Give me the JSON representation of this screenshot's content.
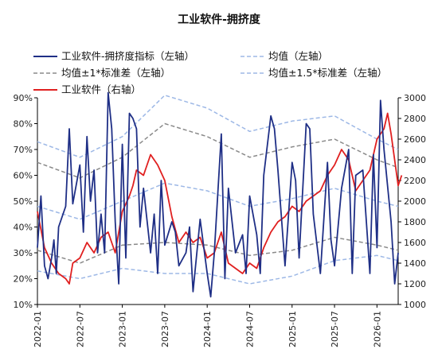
{
  "chart_data": {
    "type": "line",
    "title": "工业软件-拥挤度",
    "x_ticks": [
      "2022-01",
      "2022-07",
      "2023-01",
      "2023-07",
      "2024-01",
      "2024-07",
      "2025-01",
      "2025-07",
      "2026-01"
    ],
    "x_range": [
      "2022-01",
      "2026-04"
    ],
    "y_left": {
      "range": [
        10,
        90
      ],
      "step": 10,
      "unit": "%"
    },
    "y_right": {
      "range": [
        1000,
        3000
      ],
      "step": 200
    },
    "grid": false,
    "legend": {
      "placement": "top",
      "entries": [
        {
          "label": "工业软件-拥挤度指标（左轴）",
          "series": "crowding"
        },
        {
          "label": "均值（左轴）",
          "series": "mean"
        },
        {
          "label": "均值±1*标准差（左轴）",
          "series": "band1"
        },
        {
          "label": "均值±1.5*标准差（左轴）",
          "series": "band15"
        },
        {
          "label": "工业软件（右轴）",
          "series": "index"
        }
      ]
    },
    "colors": {
      "crowding": "#1f2f86",
      "mean": "#9db8e6",
      "band1": "#8a8a8a",
      "band15": "#9db8e6",
      "index": "#e02020"
    },
    "series": [
      {
        "id": "crowding",
        "axis": "left",
        "x": [
          "2022-01",
          "2022-01",
          "2022-02",
          "2022-02",
          "2022-03",
          "2022-03",
          "2022-03",
          "2022-04",
          "2022-05",
          "2022-05",
          "2022-06",
          "2022-07",
          "2022-07",
          "2022-08",
          "2022-08",
          "2022-09",
          "2022-09",
          "2022-10",
          "2022-10",
          "2022-11",
          "2022-11",
          "2022-12",
          "2022-12",
          "2023-01",
          "2023-01",
          "2023-02",
          "2023-02",
          "2023-03",
          "2023-03",
          "2023-04",
          "2023-05",
          "2023-05",
          "2023-06",
          "2023-06",
          "2023-07",
          "2023-08",
          "2023-08",
          "2023-09",
          "2023-10",
          "2023-10",
          "2023-11",
          "2023-12",
          "2024-01",
          "2024-01",
          "2024-02",
          "2024-03",
          "2024-03",
          "2024-04",
          "2024-05",
          "2024-06",
          "2024-06",
          "2024-07",
          "2024-08",
          "2024-08",
          "2024-09",
          "2024-10",
          "2024-10",
          "2024-11",
          "2024-12",
          "2025-01",
          "2025-01",
          "2025-02",
          "2025-03",
          "2025-03",
          "2025-04",
          "2025-05",
          "2025-06",
          "2025-06",
          "2025-07",
          "2025-08",
          "2025-09",
          "2025-09",
          "2025-10",
          "2025-11",
          "2025-12",
          "2025-12",
          "2026-01",
          "2026-01",
          "2026-02",
          "2026-03",
          "2026-03",
          "2026-04"
        ],
        "y": [
          32,
          52,
          25,
          20,
          28,
          35,
          22,
          40,
          48,
          78,
          49,
          64,
          38,
          75,
          50,
          62,
          30,
          45,
          30,
          92,
          78,
          42,
          18,
          72,
          28,
          84,
          82,
          78,
          40,
          55,
          30,
          45,
          22,
          58,
          33,
          42,
          38,
          25,
          30,
          40,
          15,
          43,
          22,
          13,
          30,
          76,
          20,
          55,
          30,
          37,
          22,
          52,
          37,
          22,
          60,
          83,
          78,
          62,
          25,
          65,
          58,
          28,
          80,
          78,
          45,
          22,
          65,
          35,
          25,
          55,
          70,
          22,
          60,
          62,
          22,
          68,
          32,
          89,
          70,
          42,
          18,
          30
        ],
        "values": [
          32,
          52,
          25,
          20,
          28,
          35,
          22,
          40,
          48,
          78,
          49,
          64,
          38,
          75,
          50,
          62,
          30,
          45,
          30,
          92,
          78,
          42,
          18,
          72,
          28,
          84,
          82,
          78,
          40,
          55,
          30,
          45,
          22,
          58,
          33,
          42,
          38,
          25,
          30,
          40,
          15,
          43,
          22,
          13,
          30,
          76,
          20,
          55,
          30,
          37,
          22,
          52,
          37,
          22,
          60,
          83,
          78,
          62,
          25,
          65,
          58,
          28,
          80,
          78,
          45,
          22,
          65,
          35,
          25,
          55,
          70,
          22,
          60,
          62,
          22,
          68,
          32,
          89,
          70,
          42,
          18,
          30
        ]
      },
      {
        "id": "mean",
        "axis": "left",
        "x": [
          "2022-01",
          "2022-07",
          "2023-01",
          "2023-07",
          "2024-01",
          "2024-07",
          "2025-01",
          "2025-07",
          "2026-01",
          "2026-04"
        ],
        "y": [
          48,
          43,
          50,
          57,
          54,
          48,
          51,
          55,
          50,
          48
        ],
        "values": [
          48,
          43,
          50,
          57,
          54,
          48,
          51,
          55,
          50,
          48
        ]
      },
      {
        "id": "band1_upper",
        "axis": "left",
        "x": [
          "2022-01",
          "2022-07",
          "2023-01",
          "2023-07",
          "2024-01",
          "2024-07",
          "2025-01",
          "2025-07",
          "2026-01",
          "2026-04"
        ],
        "y": [
          65,
          59,
          67,
          80,
          75,
          67,
          71,
          74,
          66,
          63
        ],
        "values": [
          65,
          59,
          67,
          80,
          75,
          67,
          71,
          74,
          66,
          63
        ]
      },
      {
        "id": "band1_lower",
        "axis": "left",
        "x": [
          "2022-01",
          "2022-07",
          "2023-01",
          "2023-07",
          "2024-01",
          "2024-07",
          "2025-01",
          "2025-07",
          "2026-01",
          "2026-04"
        ],
        "y": [
          31,
          26,
          33,
          34,
          33,
          29,
          31,
          36,
          33,
          31
        ],
        "values": [
          31,
          26,
          33,
          34,
          33,
          29,
          31,
          36,
          33,
          31
        ]
      },
      {
        "id": "band15_upper",
        "axis": "left",
        "x": [
          "2022-01",
          "2022-07",
          "2023-01",
          "2023-07",
          "2024-01",
          "2024-07",
          "2025-01",
          "2025-07",
          "2026-01",
          "2026-04"
        ],
        "y": [
          73,
          67,
          75,
          91,
          86,
          77,
          81,
          83,
          74,
          70
        ],
        "values": [
          73,
          67,
          75,
          91,
          86,
          77,
          81,
          83,
          74,
          70
        ]
      },
      {
        "id": "band15_lower",
        "axis": "left",
        "x": [
          "2022-01",
          "2022-07",
          "2023-01",
          "2023-07",
          "2024-01",
          "2024-07",
          "2025-01",
          "2025-07",
          "2026-01",
          "2026-04"
        ],
        "y": [
          23,
          20,
          24,
          22,
          22,
          18,
          21,
          27,
          29,
          27
        ],
        "values": [
          23,
          20,
          24,
          22,
          22,
          18,
          21,
          27,
          29,
          27
        ]
      },
      {
        "id": "index",
        "axis": "right",
        "x": [
          "2022-01",
          "2022-02",
          "2022-03",
          "2022-04",
          "2022-05",
          "2022-05",
          "2022-06",
          "2022-07",
          "2022-08",
          "2022-09",
          "2022-10",
          "2022-11",
          "2022-12",
          "2023-01",
          "2023-02",
          "2023-02",
          "2023-03",
          "2023-04",
          "2023-05",
          "2023-06",
          "2023-07",
          "2023-08",
          "2023-09",
          "2023-10",
          "2023-11",
          "2023-12",
          "2024-01",
          "2024-02",
          "2024-03",
          "2024-04",
          "2024-05",
          "2024-06",
          "2024-07",
          "2024-08",
          "2024-09",
          "2024-10",
          "2024-11",
          "2024-12",
          "2025-01",
          "2025-02",
          "2025-03",
          "2025-04",
          "2025-05",
          "2025-06",
          "2025-07",
          "2025-08",
          "2025-09",
          "2025-10",
          "2025-11",
          "2025-12",
          "2026-01",
          "2026-02",
          "2026-02",
          "2026-03",
          "2026-04",
          "2026-04"
        ],
        "y": [
          1900,
          1550,
          1400,
          1300,
          1250,
          1200,
          1400,
          1450,
          1600,
          1500,
          1650,
          1700,
          1500,
          1900,
          2050,
          2150,
          2300,
          2250,
          2450,
          2350,
          2200,
          1850,
          1600,
          1700,
          1600,
          1650,
          1450,
          1500,
          1700,
          1400,
          1350,
          1300,
          1400,
          1350,
          1550,
          1700,
          1800,
          1850,
          1950,
          1900,
          2000,
          2050,
          2100,
          2250,
          2350,
          2500,
          2400,
          2100,
          2200,
          2300,
          2600,
          2700,
          2850,
          2650,
          2150,
          2250
        ],
        "values": [
          1900,
          1550,
          1400,
          1300,
          1250,
          1200,
          1400,
          1450,
          1600,
          1500,
          1650,
          1700,
          1500,
          1900,
          2050,
          2150,
          2300,
          2250,
          2450,
          2350,
          2200,
          1850,
          1600,
          1700,
          1600,
          1650,
          1450,
          1500,
          1700,
          1400,
          1350,
          1300,
          1400,
          1350,
          1550,
          1700,
          1800,
          1850,
          1950,
          1900,
          2000,
          2050,
          2100,
          2250,
          2350,
          2500,
          2400,
          2100,
          2200,
          2300,
          2600,
          2700,
          2850,
          2650,
          2150,
          2250
        ]
      }
    ]
  }
}
